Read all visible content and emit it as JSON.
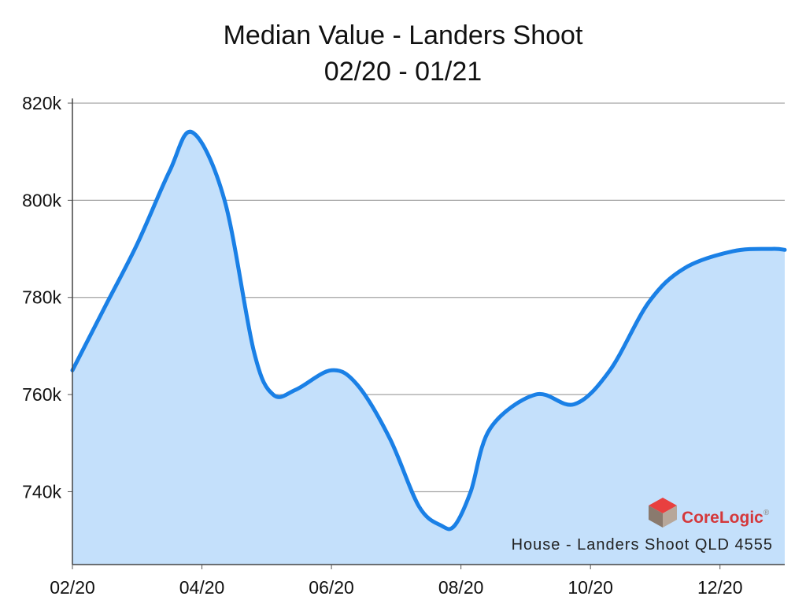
{
  "chart_data": {
    "type": "area",
    "title": "Median Value - Landers Shoot",
    "subtitle": "02/20 - 01/21",
    "ylim": [
      725000,
      820000
    ],
    "yticks": [
      {
        "value": 740000,
        "label": "740k"
      },
      {
        "value": 760000,
        "label": "760k"
      },
      {
        "value": 780000,
        "label": "780k"
      },
      {
        "value": 800000,
        "label": "800k"
      },
      {
        "value": 820000,
        "label": "820k"
      }
    ],
    "xticks": [
      {
        "value": 0,
        "label": "02/20"
      },
      {
        "value": 2,
        "label": "04/20"
      },
      {
        "value": 4,
        "label": "06/20"
      },
      {
        "value": 6,
        "label": "08/20"
      },
      {
        "value": 8,
        "label": "10/20"
      },
      {
        "value": 10,
        "label": "12/20"
      }
    ],
    "xlim": [
      0,
      11
    ],
    "grid": true,
    "series": [
      {
        "x": [
          0,
          0.5,
          1,
          1.5,
          1.85,
          2.35,
          2.8,
          3.1,
          3.45,
          4.0,
          4.4,
          4.9,
          5.35,
          5.7,
          5.9,
          6.15,
          6.45,
          7.15,
          7.75,
          8.3,
          8.9,
          9.45,
          10.2,
          10.8,
          11.0
        ],
        "values": [
          765000,
          778000,
          791000,
          806000,
          814000,
          800000,
          769000,
          760000,
          761000,
          765000,
          762000,
          751000,
          737000,
          733000,
          733000,
          740000,
          753000,
          760000,
          758000,
          765000,
          779000,
          786000,
          789500,
          790000,
          789800
        ]
      }
    ],
    "colors": {
      "line": "#1a80e6",
      "fill": "#c4e0fb",
      "grid": "#a3a3a3"
    }
  },
  "watermark": {
    "brand": "CoreLogic",
    "trademark": "®"
  },
  "footnote": "House - Landers Shoot QLD 4555"
}
